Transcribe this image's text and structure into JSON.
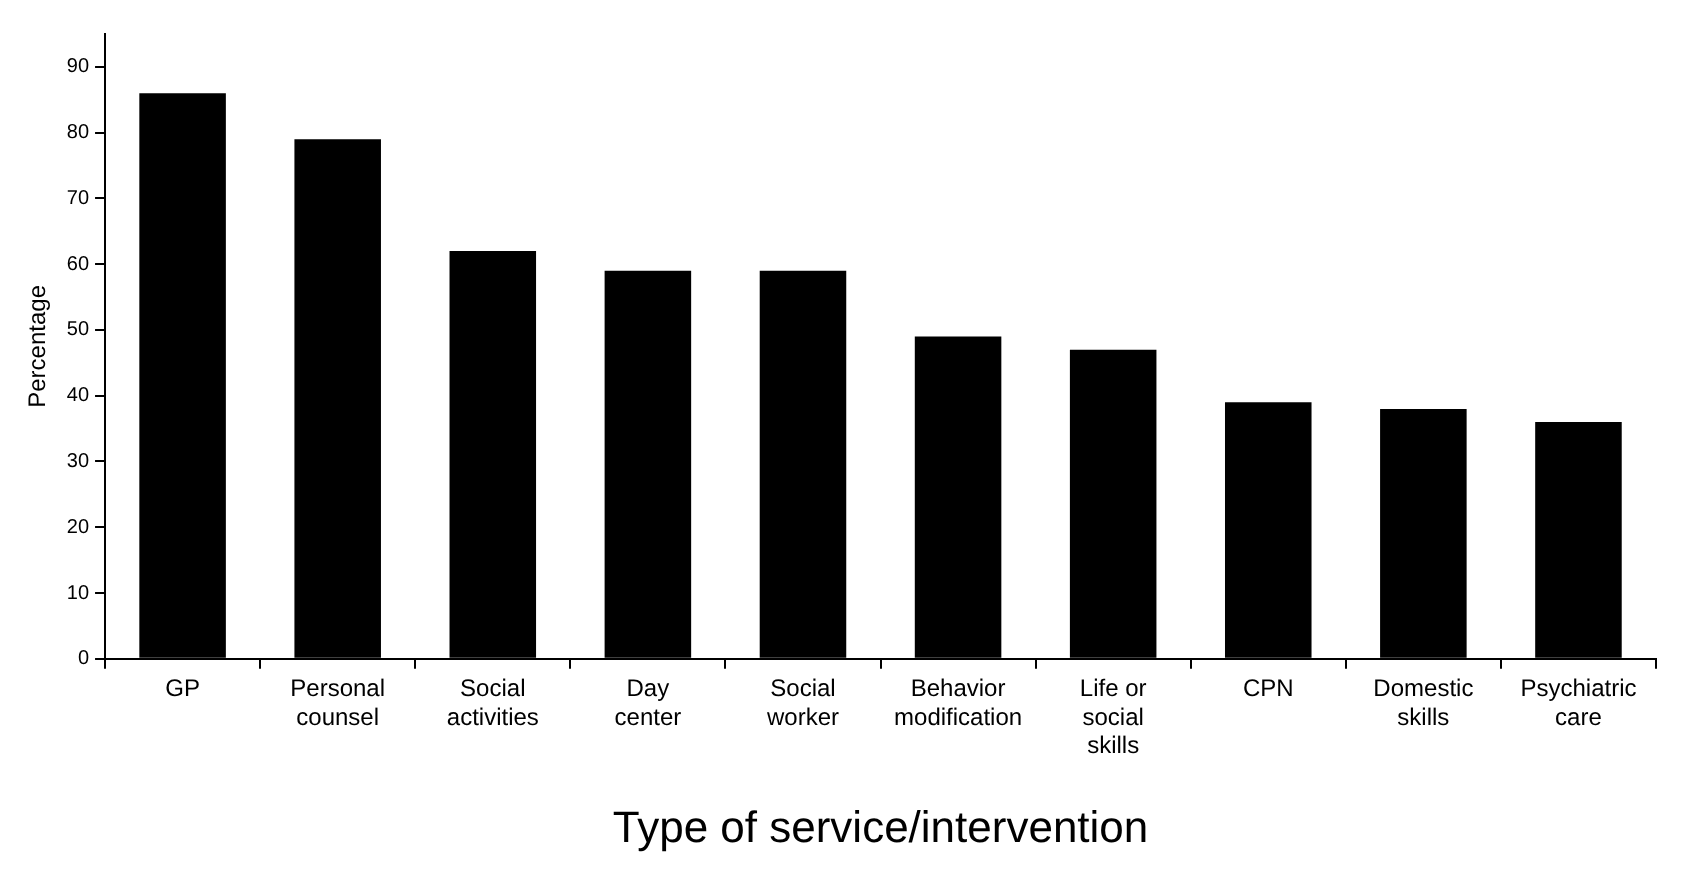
{
  "chart_data": {
    "type": "bar",
    "xlabel": "Type of service/intervention",
    "ylabel": "Percentage",
    "categories": [
      "GP",
      "Personal\ncounsel",
      "Social\nactivities",
      "Day\ncenter",
      "Social\nworker",
      "Behavior\nmodification",
      "Life or\nsocial\nskills",
      "CPN",
      "Domestic\nskills",
      "Psychiatric\ncare"
    ],
    "values": [
      86,
      79,
      62,
      59,
      59,
      49,
      47,
      39,
      38,
      36
    ],
    "color": "#000000",
    "ylim": [
      0,
      95
    ],
    "yticks": [
      0,
      10,
      20,
      30,
      40,
      50,
      60,
      70,
      80,
      90
    ],
    "grid": false,
    "legend": false
  }
}
